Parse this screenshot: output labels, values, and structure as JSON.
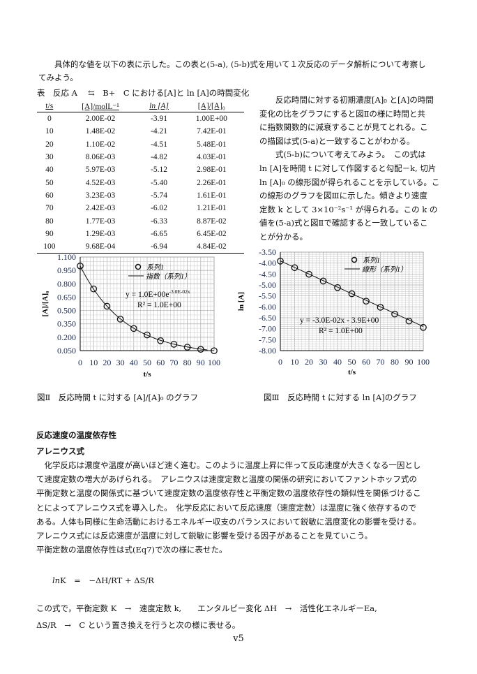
{
  "intro": {
    "lines": [
      "　　具体的な値を以下の表に示した。この表と(5-a), (5-b)式を用いて１次反応のデータ解析について考察し",
      "てみよう。"
    ]
  },
  "table": {
    "caption": "表　反応 A　 ⇆　B+　C における[A]と ln [A]の時間変化",
    "headers": [
      "t/s",
      "[A]/molL⁻¹",
      "ln [A]",
      "[A]/[A]₀"
    ],
    "rows": [
      [
        "0",
        "2.00E-02",
        "-3.91",
        "1.00E+00"
      ],
      [
        "10",
        "1.48E-02",
        "-4.21",
        "7.42E-01"
      ],
      [
        "20",
        "1.10E-02",
        "-4.51",
        "5.48E-01"
      ],
      [
        "30",
        "8.06E-03",
        "-4.82",
        "4.03E-01"
      ],
      [
        "40",
        "5.97E-03",
        "-5.12",
        "2.98E-01"
      ],
      [
        "50",
        "4.52E-03",
        "-5.40",
        "2.26E-01"
      ],
      [
        "60",
        "3.23E-03",
        "-5.74",
        "1.61E-01"
      ],
      [
        "70",
        "2.42E-03",
        "-6.02",
        "1.21E-01"
      ],
      [
        "80",
        "1.77E-03",
        "-6.33",
        "8.87E-02"
      ],
      [
        "90",
        "1.29E-03",
        "-6.65",
        "6.45E-02"
      ],
      [
        "100",
        "9.68E-04",
        "-6.94",
        "4.84E-02"
      ]
    ]
  },
  "side_text": {
    "lines": [
      "　　反応時間に対する初期濃度[A]₀ と[A]の時間",
      "変化の比をグラフにすると図Ⅱの様に時間と共",
      "に指数関数的に減衰することが見てとれる。こ",
      "の描図は式(5-a)と一致することがわかる。",
      "　　式(5-b)について考えてみよう。　この式は",
      "ln [A]を時間 t に対して作図すると勾配－k, 切片",
      "ln [A]₀ の線形図が得られることを示している。こ",
      "の線形のグラフを図Ⅲに示した。傾きより速度",
      "定数 k として 3×10⁻²s⁻¹ が得られる。この k の",
      "値を(5-a)式と図Ⅱで確認すると一致しているこ",
      "とが分かる。"
    ]
  },
  "chart_data": [
    {
      "type": "scatter",
      "xlabel": "t/s",
      "ylabel": "[A]/[A]₀",
      "xlim": [
        0,
        100
      ],
      "ylim": [
        0.05,
        1.1
      ],
      "xticks": [
        "0",
        "10",
        "20",
        "30",
        "40",
        "50",
        "60",
        "70",
        "80",
        "90",
        "100"
      ],
      "yticks": [
        "1.100",
        "0.950",
        "0.800",
        "0.650",
        "0.500",
        "0.350",
        "0.200",
        "0.050"
      ],
      "grid": true,
      "legend_placement": "top-right",
      "series": [
        {
          "name": "系列1",
          "x": [
            0,
            10,
            20,
            30,
            40,
            50,
            60,
            70,
            80,
            90,
            100
          ],
          "y": [
            1.0,
            0.742,
            0.548,
            0.403,
            0.298,
            0.226,
            0.161,
            0.121,
            0.0887,
            0.0645,
            0.0484
          ]
        }
      ],
      "trendline": {
        "name": "指数（系列1）",
        "kind": "exponential",
        "a": 1.0,
        "b": -0.03
      },
      "equation": "y = 1.0E+00e",
      "equation_exp": "-3.0E-02x",
      "r2": "R² = 1.0E+00",
      "caption": "図Ⅱ　反応時間 t に対する  [A]/[A]₀ のグラフ"
    },
    {
      "type": "scatter",
      "xlabel": "t/s",
      "ylabel": "ln [A]",
      "xlim": [
        0,
        100
      ],
      "ylim": [
        -8.0,
        -3.5
      ],
      "xticks": [
        "0",
        "10",
        "20",
        "30",
        "40",
        "50",
        "60",
        "70",
        "80",
        "90",
        "100"
      ],
      "yticks": [
        "-3.50",
        "-4.00",
        "-4.50",
        "-5.00",
        "-5.50",
        "-6.00",
        "-6.50",
        "-7.00",
        "-7.50",
        "-8.00"
      ],
      "grid": true,
      "legend_placement": "top-right",
      "series": [
        {
          "name": "系列1",
          "x": [
            0,
            10,
            20,
            30,
            40,
            50,
            60,
            70,
            80,
            90,
            100
          ],
          "y": [
            -3.91,
            -4.21,
            -4.51,
            -4.82,
            -5.12,
            -5.4,
            -5.74,
            -6.02,
            -6.33,
            -6.65,
            -6.94
          ]
        }
      ],
      "trendline": {
        "name": "線形（系列1）",
        "kind": "linear",
        "slope": -0.03,
        "intercept": -3.9
      },
      "equation": "y = -3.0E-02x - 3.9E+00",
      "r2": "R² = 1.0E+00",
      "caption": "図Ⅲ　反応時間 t に対する  ln [A]のグラフ"
    }
  ],
  "section": {
    "heading": "反応速度の温度依存性",
    "subheading": "アレニウス式",
    "lines": [
      "　化学反応は濃度や温度が高いほど速く進む。このように温度上昇に伴って反応速度が大きくなる一因とし",
      "て速度定数の増大があげられる。　アレニウスは速度定数と温度の関係の研究においてファントホッフ式の",
      "平衡定数と温度の関係式に基づいて速度定数の温度依存性と平衡定数の温度依存性の類似性を関係づけるこ",
      "とによってアレニウス式を導入した。　化学反応において反応速度（速度定数）は温度に強く依存するので",
      "ある。人体も同様に生命活動におけるエネルギー収支のバランスにおいて鋭敏に温度変化の影響を受ける。",
      "アレニウス式には反応速度が温度に対して鋭敏に影響を受ける因子があることを見ていこう。",
      "平衡定数の温度依存性は式(Eq7)で次の様に表せた。"
    ],
    "equation_ln": "ln",
    "equation_rest": "K　=　−ΔH/RT + ΔS/R",
    "after_lines": [
      "この式で，平衡定数 K　→　速度定数 k,　　エンタルピー変化 ΔH　→　活性化エネルギーEa,",
      "ΔS/R　→　C という置き換えを行うと次の様に表せる。"
    ]
  },
  "footer": {
    "page_label": "v5"
  }
}
